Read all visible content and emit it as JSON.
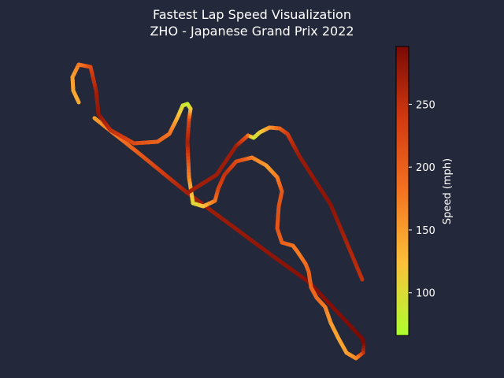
{
  "chart_data": {
    "type": "line",
    "title": "Fastest Lap Speed Visualization",
    "subtitle": "ZHO - Japanese Grand Prix 2022",
    "colorbar": {
      "label": "Speed (mph)",
      "range": [
        66,
        296
      ],
      "ticks": [
        100,
        150,
        200,
        250
      ],
      "colors": [
        "#adff2f",
        "#fbc13a",
        "#f47320",
        "#d23a10",
        "#7a0a05"
      ]
    },
    "track_points": [
      [
        120,
        150,
        150
      ],
      [
        173,
        192,
        200
      ],
      [
        238,
        245,
        270
      ],
      [
        342,
        322,
        282
      ],
      [
        392,
        358,
        288
      ],
      [
        430,
        398,
        290
      ],
      [
        460,
        430,
        295
      ],
      [
        462,
        438,
        295
      ],
      [
        461,
        448,
        260
      ],
      [
        452,
        455,
        170
      ],
      [
        440,
        448,
        150
      ],
      [
        430,
        430,
        145
      ],
      [
        420,
        410,
        150
      ],
      [
        413,
        390,
        170
      ],
      [
        402,
        378,
        190
      ],
      [
        395,
        365,
        195
      ],
      [
        392,
        345,
        200
      ],
      [
        388,
        335,
        190
      ],
      [
        378,
        320,
        175
      ],
      [
        372,
        312,
        180
      ],
      [
        358,
        308,
        200
      ],
      [
        352,
        290,
        210
      ],
      [
        354,
        262,
        215
      ],
      [
        358,
        243,
        210
      ],
      [
        352,
        225,
        180
      ],
      [
        338,
        210,
        150
      ],
      [
        320,
        200,
        170
      ],
      [
        300,
        205,
        220
      ],
      [
        285,
        222,
        250
      ],
      [
        277,
        240,
        230
      ],
      [
        273,
        255,
        190
      ],
      [
        258,
        262,
        130
      ],
      [
        245,
        258,
        100
      ],
      [
        240,
        225,
        160
      ],
      [
        238,
        180,
        270
      ],
      [
        240,
        152,
        230
      ],
      [
        242,
        138,
        130
      ],
      [
        238,
        132,
        80
      ],
      [
        232,
        134,
        90
      ],
      [
        225,
        150,
        130
      ],
      [
        215,
        170,
        180
      ],
      [
        200,
        180,
        195
      ],
      [
        170,
        182,
        220
      ],
      [
        140,
        165,
        250
      ],
      [
        125,
        145,
        280
      ],
      [
        122,
        115,
        270
      ],
      [
        115,
        85,
        230
      ],
      [
        100,
        82,
        180
      ],
      [
        92,
        98,
        150
      ],
      [
        93,
        115,
        145
      ],
      [
        100,
        130,
        140
      ]
    ],
    "track_points_columns": [
      "x",
      "y",
      "speed_mph"
    ],
    "s_bend": [
      [
        238,
        245,
        270
      ],
      [
        275,
        222,
        272
      ],
      [
        300,
        185,
        275
      ],
      [
        315,
        172,
        210
      ],
      [
        322,
        175,
        90
      ],
      [
        330,
        168,
        105
      ],
      [
        342,
        162,
        150
      ],
      [
        355,
        163,
        190
      ],
      [
        365,
        170,
        235
      ],
      [
        380,
        198,
        275
      ],
      [
        420,
        260,
        285
      ],
      [
        460,
        355,
        250
      ]
    ],
    "s_bend_columns": [
      "x",
      "y",
      "speed_mph"
    ]
  }
}
